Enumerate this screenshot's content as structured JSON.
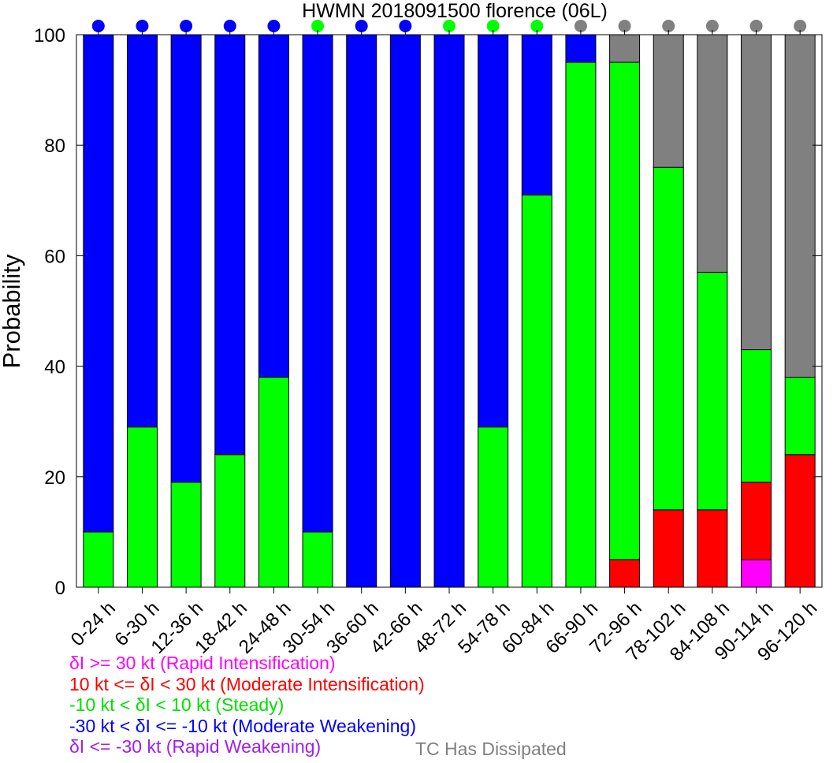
{
  "chart_data": {
    "type": "bar",
    "title": "HWMN 2018091500 florence (06L)",
    "ylabel": "Probability",
    "ylim": [
      0,
      100
    ],
    "yticks": [
      0,
      20,
      40,
      60,
      80,
      100
    ],
    "categories": [
      "0-24 h",
      "6-30 h",
      "12-36 h",
      "18-42 h",
      "24-48 h",
      "30-54 h",
      "36-60 h",
      "42-66 h",
      "48-72 h",
      "54-78 h",
      "60-84 h",
      "66-90 h",
      "72-96 h",
      "78-102 h",
      "84-108 h",
      "90-114 h",
      "96-120 h"
    ],
    "series": [
      {
        "key": "ri",
        "color": "#ff00ff",
        "values": [
          0,
          0,
          0,
          0,
          0,
          0,
          0,
          0,
          0,
          0,
          0,
          0,
          0,
          0,
          0,
          5,
          0
        ]
      },
      {
        "key": "mi",
        "color": "#ff0000",
        "values": [
          0,
          0,
          0,
          0,
          0,
          0,
          0,
          0,
          0,
          0,
          0,
          0,
          5,
          14,
          14,
          14,
          24
        ]
      },
      {
        "key": "st",
        "color": "#00ff00",
        "values": [
          10,
          29,
          19,
          24,
          38,
          10,
          0,
          0,
          0,
          29,
          71,
          95,
          90,
          62,
          43,
          24,
          14
        ]
      },
      {
        "key": "mw",
        "color": "#0000ff",
        "values": [
          90,
          71,
          81,
          76,
          62,
          90,
          100,
          100,
          100,
          71,
          29,
          5,
          0,
          0,
          0,
          0,
          0
        ]
      },
      {
        "key": "rw",
        "color": "#a020f0",
        "values": [
          0,
          0,
          0,
          0,
          0,
          0,
          0,
          0,
          0,
          0,
          0,
          0,
          0,
          0,
          0,
          0,
          0
        ]
      },
      {
        "key": "diss",
        "color": "#808080",
        "values": [
          0,
          0,
          0,
          0,
          0,
          0,
          0,
          0,
          0,
          0,
          0,
          0,
          5,
          24,
          43,
          57,
          62
        ]
      }
    ],
    "top_markers": [
      "#0000ff",
      "#0000ff",
      "#0000ff",
      "#0000ff",
      "#0000ff",
      "#00ff00",
      "#0000ff",
      "#0000ff",
      "#00ff00",
      "#00ff00",
      "#00ff00",
      "#808080",
      "#808080",
      "#808080",
      "#808080",
      "#808080",
      "#808080"
    ]
  },
  "legend": {
    "rapid_intensification": "δI >= 30 kt (Rapid Intensification)",
    "moderate_intensification": "10 kt <= δI < 30 kt (Moderate Intensification)",
    "steady": "-10 kt < δI < 10 kt (Steady)",
    "moderate_weakening": "-30 kt < δI <= -10 kt (Moderate Weakening)",
    "rapid_weakening": "δI <= -30 kt (Rapid Weakening)",
    "dissipated": "TC Has Dissipated"
  }
}
